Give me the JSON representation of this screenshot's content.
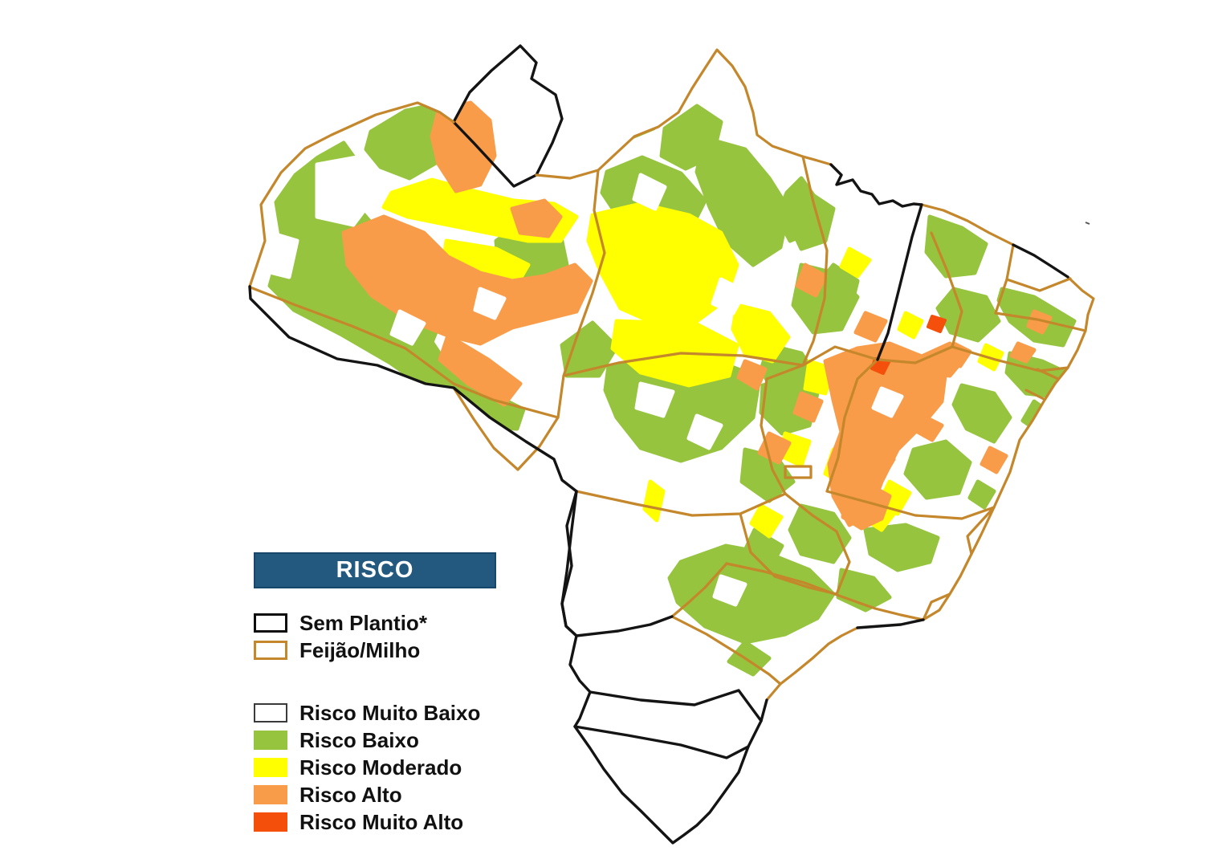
{
  "legend": {
    "title": "RISCO",
    "outline_items": [
      {
        "id": "sem-plantio",
        "label": "Sem Plantio*",
        "fill": "#ffffff",
        "border": "#0d0d0d"
      },
      {
        "id": "feijao-milho",
        "label": "Feijão/Milho",
        "fill": "#ffffff",
        "border": "#C4872B"
      }
    ],
    "risk_items": [
      {
        "id": "risco-muito-baixo",
        "label": "Risco Muito Baixo",
        "fill": "#ffffff",
        "border": "#3a3a3a"
      },
      {
        "id": "risco-baixo",
        "label": "Risco Baixo",
        "fill": "#96C43E",
        "border": "#96C43E"
      },
      {
        "id": "risco-moderado",
        "label": "Risco Moderado",
        "fill": "#FFFF00",
        "border": "#FFFF00"
      },
      {
        "id": "risco-alto",
        "label": "Risco Alto",
        "fill": "#F99C49",
        "border": "#F99C49"
      },
      {
        "id": "risco-muito-alto",
        "label": "Risco Muito Alto",
        "fill": "#F4500C",
        "border": "#F4500C"
      }
    ]
  },
  "colors": {
    "risk_low": "#96C43E",
    "risk_moderate": "#FFFF00",
    "risk_high": "#F99C49",
    "risk_very_high": "#F4500C",
    "border_no_planting": "#141414",
    "border_feijao_milho": "#C4872B",
    "header_bg": "#24597F",
    "header_text": "#FFFFFF"
  },
  "map": {
    "country": "Brasil",
    "boundary_meaning": {
      "black_outline": "Sem Plantio*",
      "tan_outline": "Feijão/Milho"
    }
  }
}
